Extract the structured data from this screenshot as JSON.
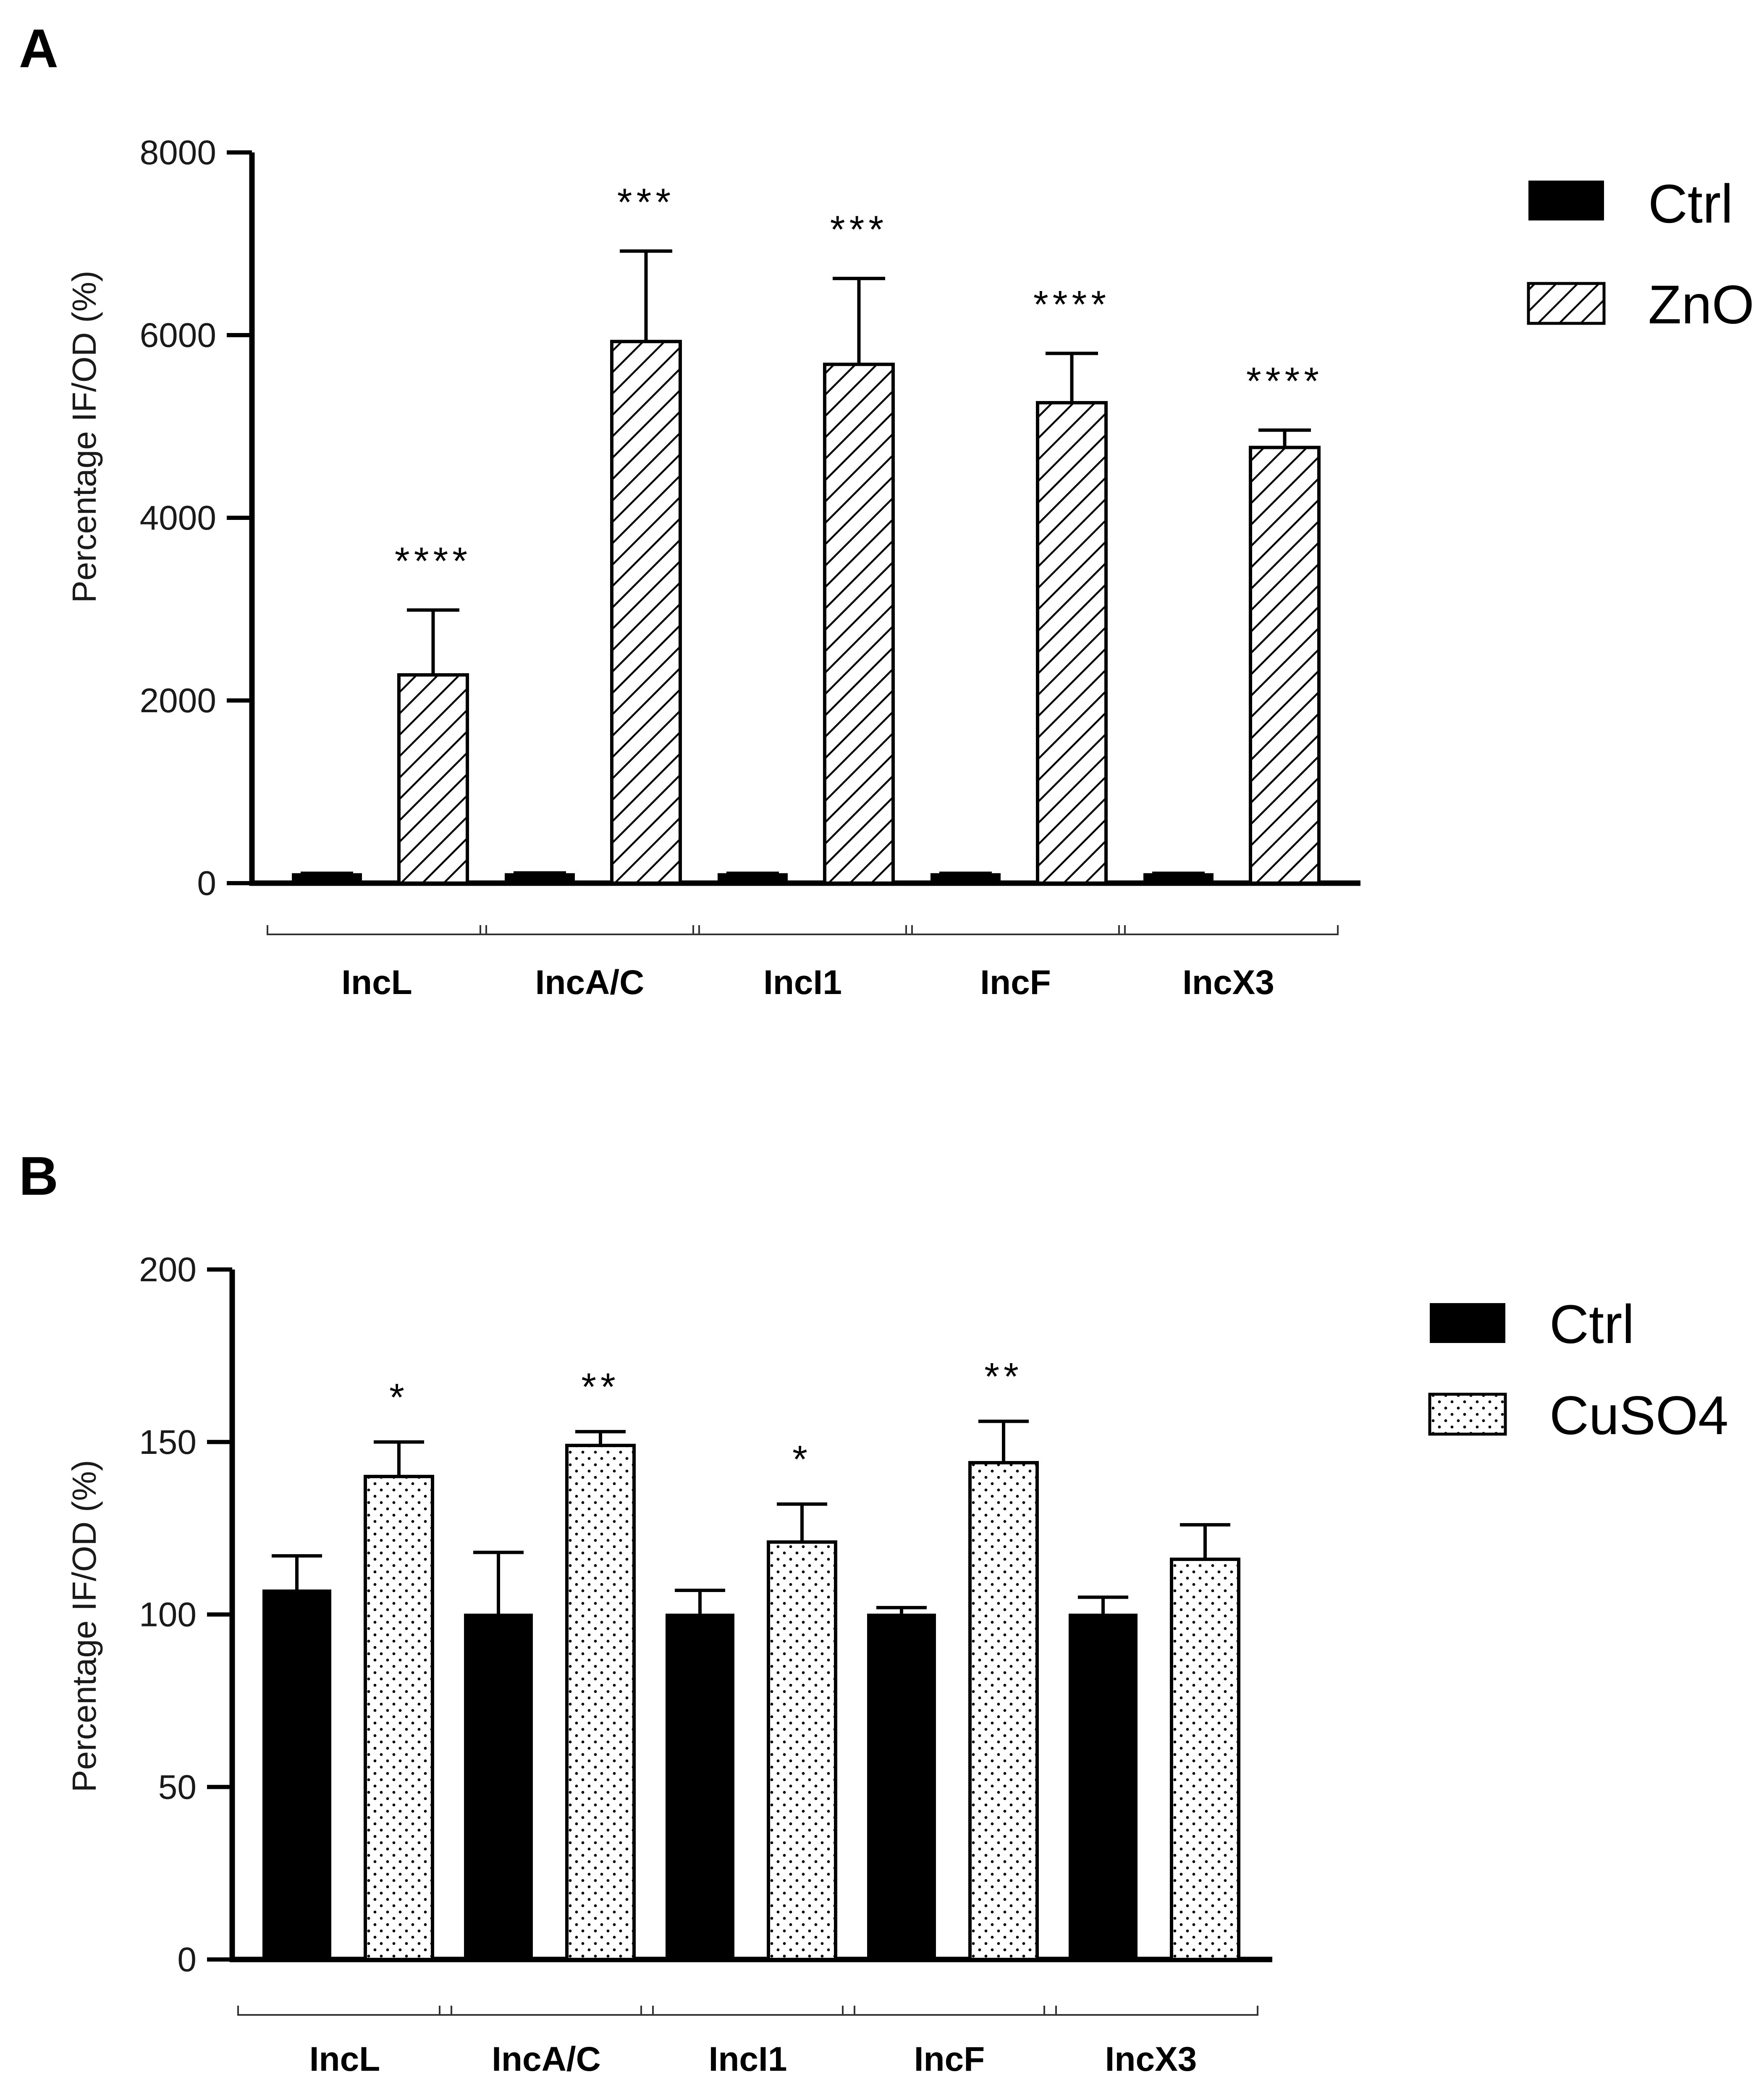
{
  "chart_data": [
    {
      "panel": "A",
      "type": "bar",
      "categories": [
        "IncL",
        "IncA/C",
        "IncI1",
        "IncF",
        "IncX3"
      ],
      "ylabel": "Percentage IF/OD (%)",
      "ylim": [
        0,
        8000
      ],
      "yticks": [
        0,
        2000,
        4000,
        6000,
        8000
      ],
      "series": [
        {
          "name": "Ctrl",
          "pattern": "solid",
          "values": [
            100,
            100,
            100,
            100,
            100
          ],
          "errors": [
            8,
            12,
            8,
            8,
            8
          ]
        },
        {
          "name": "ZnO",
          "pattern": "hatch",
          "values": [
            2280,
            5930,
            5680,
            5260,
            4770
          ],
          "errors": [
            710,
            990,
            940,
            540,
            190
          ]
        }
      ],
      "significance": [
        "****",
        "***",
        "***",
        "****",
        "****"
      ],
      "legend": [
        "Ctrl",
        "ZnO"
      ],
      "legend_position": "top-right"
    },
    {
      "panel": "B",
      "type": "bar",
      "categories": [
        "IncL",
        "IncA/C",
        "IncI1",
        "IncF",
        "IncX3"
      ],
      "ylabel": "Percentage IF/OD (%)",
      "ylim": [
        0,
        200
      ],
      "yticks": [
        0,
        50,
        100,
        150,
        200
      ],
      "series": [
        {
          "name": "Ctrl",
          "pattern": "solid",
          "values": [
            107,
            100,
            100,
            100,
            100
          ],
          "errors": [
            10,
            18,
            7,
            2,
            5
          ]
        },
        {
          "name": "CuSO4",
          "pattern": "dots",
          "values": [
            140,
            149,
            121,
            144,
            116
          ],
          "errors": [
            10,
            4,
            11,
            12,
            10
          ]
        }
      ],
      "significance": [
        "*",
        "**",
        "*",
        "**",
        ""
      ],
      "legend": [
        "Ctrl",
        "CuSO4"
      ],
      "legend_position": "top-right"
    }
  ],
  "colors": {
    "bar_fill_solid": "#000000",
    "bar_fill_pattern": "#ffffff",
    "axis": "#000000"
  }
}
